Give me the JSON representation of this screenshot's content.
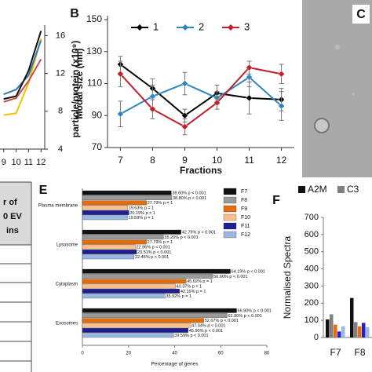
{
  "chart_data": [
    {
      "type": "line",
      "x": [
        9,
        10,
        11,
        12
      ],
      "xticks": [
        9,
        10,
        11,
        12
      ],
      "xlim": [
        8.7,
        12.3
      ],
      "y2lim": [
        4,
        16.7
      ],
      "y2ticks": [
        4,
        8,
        12,
        16
      ],
      "y2label": "particle/protein (x10⁹)",
      "series": [
        {
          "name": null,
          "color": "#f2c200",
          "axis": "y2",
          "values": [
            7.6,
            7.8,
            11.0,
            15.7
          ]
        },
        {
          "name": null,
          "color": "#2e75b6",
          "axis": "y2",
          "values": [
            9.8,
            10.3,
            11.8,
            15.5
          ]
        },
        {
          "name": null,
          "color": "#111111",
          "axis": "y2",
          "values": [
            9.3,
            9.6,
            12.3,
            16.5
          ]
        },
        {
          "name": null,
          "color": "#c0504d",
          "axis": "y2",
          "values": [
            9.0,
            9.4,
            11.2,
            13.5
          ]
        }
      ]
    },
    {
      "type": "line",
      "label": "B",
      "x": [
        7,
        8,
        9,
        10,
        11,
        12
      ],
      "xticks": [
        7,
        8,
        9,
        10,
        11,
        12
      ],
      "xlim": [
        6.6,
        12.4
      ],
      "ylim": [
        70,
        150
      ],
      "yticks": [
        70,
        90,
        110,
        130,
        150
      ],
      "xlabel": "Fractions",
      "ylabel": "Modal size (nm)",
      "marker": "diamond",
      "legend": "top",
      "series": [
        {
          "name": "1",
          "color": "#000000",
          "values": [
            122,
            107,
            90,
            104,
            101,
            100
          ],
          "errors": [
            5,
            6,
            4,
            5,
            10,
            7
          ]
        },
        {
          "name": "2",
          "color": "#2e86c1",
          "values": [
            91,
            102,
            110,
            101,
            114,
            96
          ],
          "errors": [
            8,
            7,
            7,
            4,
            6,
            9
          ]
        },
        {
          "name": "3",
          "color": "#c0202a",
          "values": [
            116,
            94,
            83,
            98,
            120,
            116
          ],
          "errors": [
            8,
            6,
            5,
            4,
            4,
            6
          ]
        }
      ]
    },
    {
      "type": "hbar",
      "label": "E",
      "categories": [
        "Plasma membrane",
        "Lysosome",
        "Cytoplasm",
        "Exosomes"
      ],
      "xlim": [
        0,
        80
      ],
      "xticks": [
        0,
        20,
        40,
        60,
        80
      ],
      "xlabel": "Percentage of genes",
      "legend": "upper right",
      "series": [
        {
          "name": "F7",
          "color": "#111111",
          "values": [
            38.6,
            42.79,
            64.19,
            66.9
          ],
          "value_labels": [
            "38.60% p < 0.001",
            "42.79% p < 0.001",
            "64.19% p < 0.001",
            "66.90% p < 0.001"
          ]
        },
        {
          "name": "F8",
          "color": "#9a9a9a",
          "values": [
            38.8,
            35.2,
            56.6,
            62.8
          ],
          "value_labels": [
            "38.80% p < 0.001",
            "35.20% p < 0.001",
            "56.60% p < 0.001",
            "62.80% p < 0.001"
          ]
        },
        {
          "name": "F9",
          "color": "#e46c0a",
          "values": [
            27.79,
            27.79,
            45.02,
            52.67
          ],
          "value_labels": [
            "27.79% p = 1",
            "27.79% p = 1",
            "45.02% p = 1",
            "52.67% p < 0.001"
          ]
        },
        {
          "name": "F10",
          "color": "#fbbf8f",
          "values": [
            19.63,
            22.96,
            40.37,
            47.04
          ],
          "value_labels": [
            "19.63% p = 1",
            "22.96% p < 0.001",
            "40.37% p = 1",
            "47.04% p < 0.001"
          ]
        },
        {
          "name": "F11",
          "color": "#1f1f8f",
          "values": [
            20.19,
            23.51,
            42.16,
            45.9
          ],
          "value_labels": [
            "20.19% p = 1",
            "23.51% p < 0.001",
            "42.16% p = 1",
            "45.90% p < 0.001"
          ]
        },
        {
          "name": "F12",
          "color": "#9ab8e0",
          "values": [
            19.59,
            22.45,
            35.92,
            39.59
          ],
          "value_labels": [
            "19.59% p = 1",
            "22.45% p < 0.001",
            "35.92% p = 1",
            "39.59% p < 0.001"
          ]
        }
      ]
    },
    {
      "type": "bar",
      "label": "F",
      "categories": [
        "F7",
        "F8"
      ],
      "ylim": [
        0,
        700
      ],
      "yticks": [
        0,
        100,
        200,
        300,
        400,
        500,
        600,
        700
      ],
      "ylabel": "Normalised Spectra",
      "legend": "top",
      "series": [
        {
          "name": "A2M",
          "color": "#111111",
          "values": [
            105,
            230
          ]
        },
        {
          "name": "C3",
          "color": "#808080",
          "values": [
            135,
            90
          ]
        },
        {
          "name": null,
          "color": "#e46c0a",
          "values": [
            75,
            65
          ]
        },
        {
          "name": null,
          "color": "#1f1fcf",
          "values": [
            35,
            85
          ]
        },
        {
          "name": null,
          "color": "#9ab8e0",
          "values": [
            65,
            60
          ]
        }
      ]
    }
  ],
  "image_panel": {
    "label": "C"
  },
  "table_fragment": {
    "lines": [
      "r of",
      "0 EV",
      "ins"
    ]
  }
}
